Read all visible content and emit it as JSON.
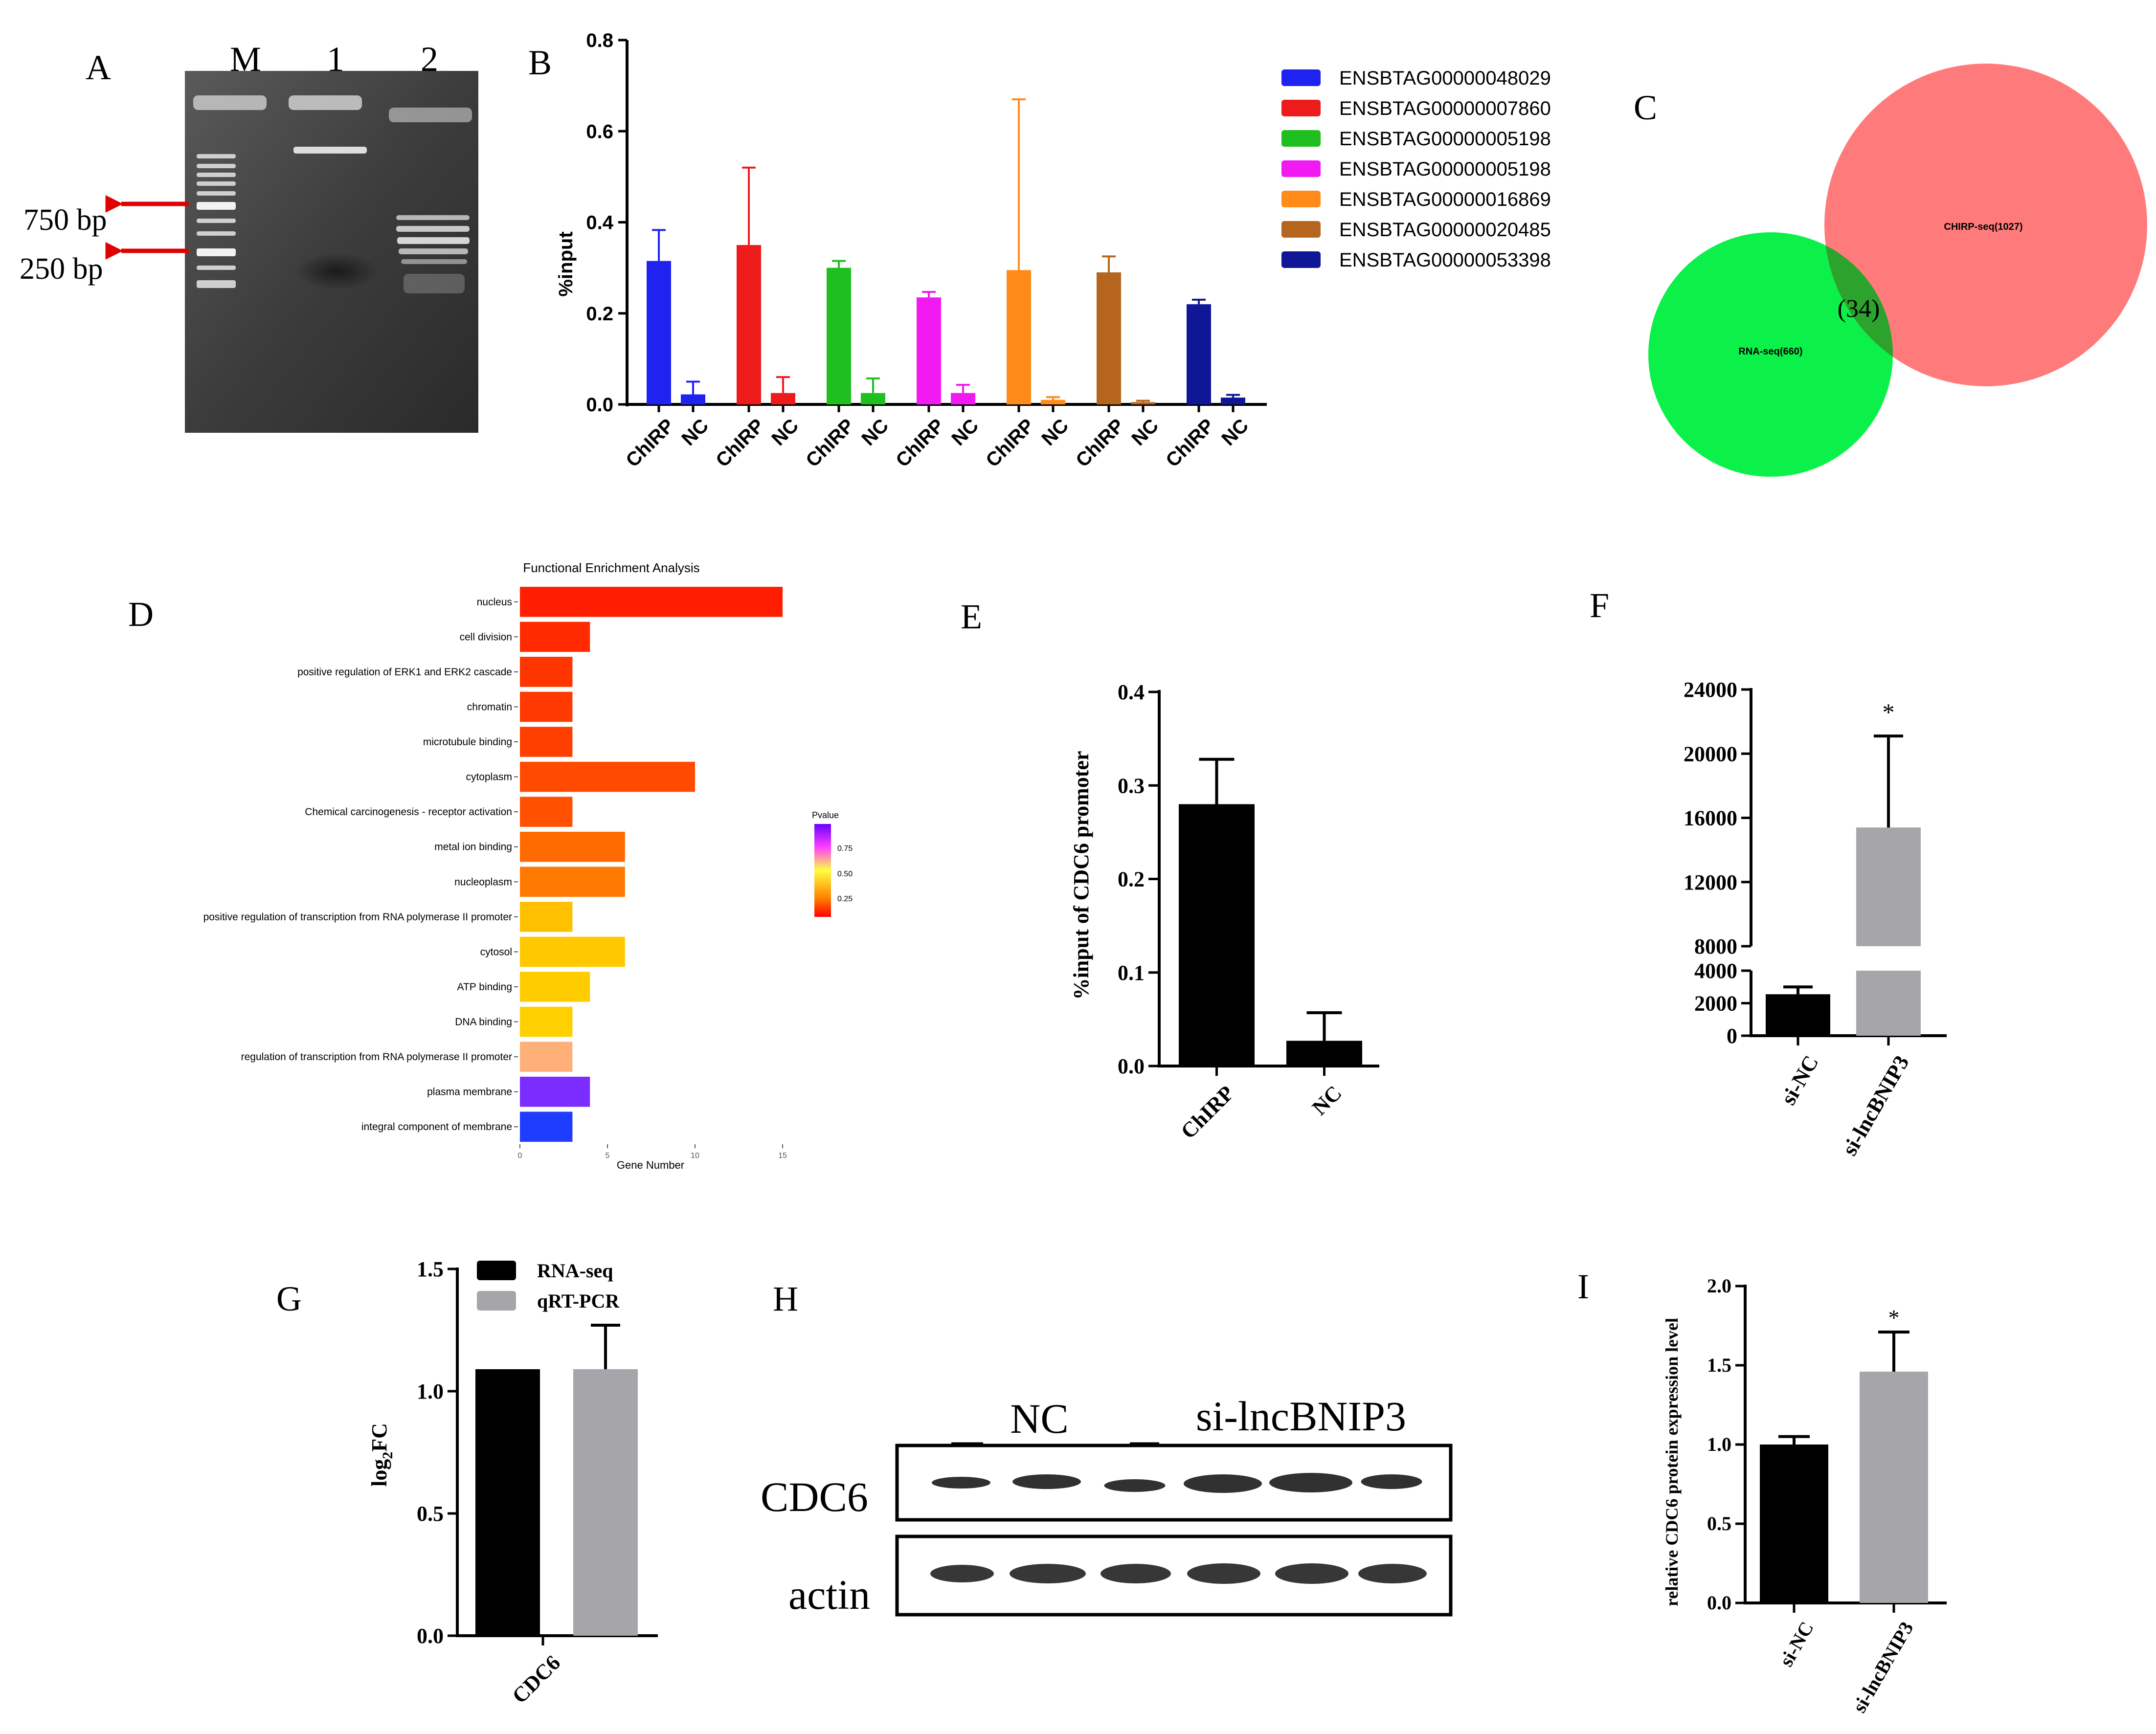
{
  "panels": {
    "A": {
      "letter": "A",
      "lanes": [
        "M",
        "1",
        "2"
      ],
      "markers": [
        "750 bp",
        "250 bp"
      ]
    },
    "B": {
      "letter": "B",
      "chart_data": {
        "type": "bar",
        "ylabel": "%input",
        "ylim": [
          0,
          0.8
        ],
        "yticks": [
          "0.0",
          "0.2",
          "0.4",
          "0.6",
          "0.8"
        ],
        "group_labels": [
          "ChIRP",
          "NC"
        ],
        "series": [
          {
            "name": "ENSBTAG00000048029",
            "color": "#1f22f0",
            "values": [
              0.315,
              0.022
            ],
            "errors": [
              0.068,
              0.028
            ]
          },
          {
            "name": "ENSBTAG00000007860",
            "color": "#ee1b1b",
            "values": [
              0.35,
              0.025
            ],
            "errors": [
              0.17,
              0.035
            ]
          },
          {
            "name": "ENSBTAG00000005198",
            "color": "#1fbf1f",
            "values": [
              0.3,
              0.025
            ],
            "errors": [
              0.015,
              0.032
            ]
          },
          {
            "name": "ENSBTAG00000005198",
            "color": "#f21af2",
            "values": [
              0.235,
              0.025
            ],
            "errors": [
              0.012,
              0.018
            ]
          },
          {
            "name": "ENSBTAG00000016869",
            "color": "#ff8c1a",
            "values": [
              0.295,
              0.01
            ],
            "errors": [
              0.375,
              0.006
            ]
          },
          {
            "name": "ENSBTAG00000020485",
            "color": "#b5651d",
            "values": [
              0.29,
              0.005
            ],
            "errors": [
              0.035,
              0.003
            ]
          },
          {
            "name": "ENSBTAG00000053398",
            "color": "#0f1796",
            "values": [
              0.22,
              0.015
            ],
            "errors": [
              0.01,
              0.006
            ]
          }
        ]
      }
    },
    "C": {
      "letter": "C",
      "chart_data": {
        "type": "venn",
        "sets": [
          {
            "label": "RNA-seq(660)",
            "size": 660,
            "color": "#0cf04a"
          },
          {
            "label": "CHIRP-seq(1027)",
            "size": 1027,
            "color": "#ff7b7b"
          }
        ],
        "overlap_label": "(34)",
        "overlap": 34,
        "overlap_color": "#2ca32c"
      }
    },
    "D": {
      "letter": "D",
      "chart_data": {
        "type": "bar",
        "orientation": "horizontal",
        "title": "Functional Enrichment Analysis",
        "xlabel": "Gene Number",
        "xlim": [
          0,
          15
        ],
        "xticks": [
          "0",
          "5",
          "10",
          "15"
        ],
        "categories": [
          "nucleus",
          "cell division",
          "positive regulation of ERK1 and ERK2 cascade",
          "chromatin",
          "microtubule binding",
          "cytoplasm",
          "Chemical carcinogenesis - receptor activation",
          "metal ion binding",
          "nucleoplasm",
          "positive regulation of transcription from RNA polymerase II promoter",
          "cytosol",
          "ATP binding",
          "DNA binding",
          "regulation of transcription from RNA polymerase II promoter",
          "plasma membrane",
          "integral component of membrane"
        ],
        "values": [
          15,
          4,
          3,
          3,
          3,
          10,
          3,
          6,
          6,
          3,
          6,
          4,
          3,
          3,
          4,
          3
        ],
        "colors": [
          "#ff1f00",
          "#ff2a00",
          "#ff3500",
          "#ff3a00",
          "#ff3f00",
          "#ff4a00",
          "#ff5000",
          "#ff6a00",
          "#ff7a00",
          "#ffc000",
          "#ffc800",
          "#ffcc00",
          "#ffd000",
          "#ffb078",
          "#7b2cff",
          "#1f3dff"
        ],
        "legend": {
          "title": "Pvalue",
          "ticks": [
            "0.75",
            "0.50",
            "0.25"
          ]
        }
      }
    },
    "E": {
      "letter": "E",
      "chart_data": {
        "type": "bar",
        "ylabel": "%input of CDC6 promoter",
        "ylim": [
          0,
          0.4
        ],
        "yticks": [
          "0.0",
          "0.1",
          "0.2",
          "0.3",
          "0.4"
        ],
        "categories": [
          "ChIRP",
          "NC"
        ],
        "values": [
          0.28,
          0.027
        ],
        "errors": [
          0.048,
          0.03
        ],
        "colors": [
          "#000000",
          "#000000"
        ]
      }
    },
    "F": {
      "letter": "F",
      "chart_data": {
        "type": "bar",
        "broken_axis": true,
        "lower_range": [
          0,
          4000
        ],
        "upper_range": [
          8000,
          24000
        ],
        "yticks_lower": [
          "0",
          "2000",
          "4000"
        ],
        "yticks_upper": [
          "8000",
          "12000",
          "16000",
          "20000",
          "24000"
        ],
        "categories": [
          "si-NC",
          "si-lncBNIP3"
        ],
        "values": [
          2550,
          15400
        ],
        "errors": [
          450,
          5700
        ],
        "colors": [
          "#000000",
          "#a6a6aa"
        ],
        "significance": "*"
      }
    },
    "G": {
      "letter": "G",
      "chart_data": {
        "type": "bar",
        "ylabel": "log2FC",
        "ylim": [
          0,
          1.5
        ],
        "yticks": [
          "0.0",
          "0.5",
          "1.0",
          "1.5"
        ],
        "categories": [
          "CDC6"
        ],
        "series": [
          {
            "name": "RNA-seq",
            "values": [
              1.09
            ],
            "errors": [
              0
            ],
            "color": "#000000"
          },
          {
            "name": "qRT-PCR",
            "values": [
              1.09
            ],
            "errors": [
              0.18
            ],
            "color": "#a6a6aa"
          }
        ]
      }
    },
    "H": {
      "letter": "H",
      "groups": [
        "NC",
        "si-lncBNIP3"
      ],
      "rows": [
        "CDC6",
        "actin"
      ]
    },
    "I": {
      "letter": "I",
      "chart_data": {
        "type": "bar",
        "ylabel": "relative CDC6 protein expression level",
        "ylim": [
          0,
          2.0
        ],
        "yticks": [
          "0.0",
          "0.5",
          "1.0",
          "1.5",
          "2.0"
        ],
        "categories": [
          "si-NC",
          "si-lncBNIP3"
        ],
        "values": [
          1.0,
          1.46
        ],
        "errors": [
          0.05,
          0.25
        ],
        "colors": [
          "#000000",
          "#a6a6aa"
        ],
        "significance": "*"
      }
    }
  }
}
